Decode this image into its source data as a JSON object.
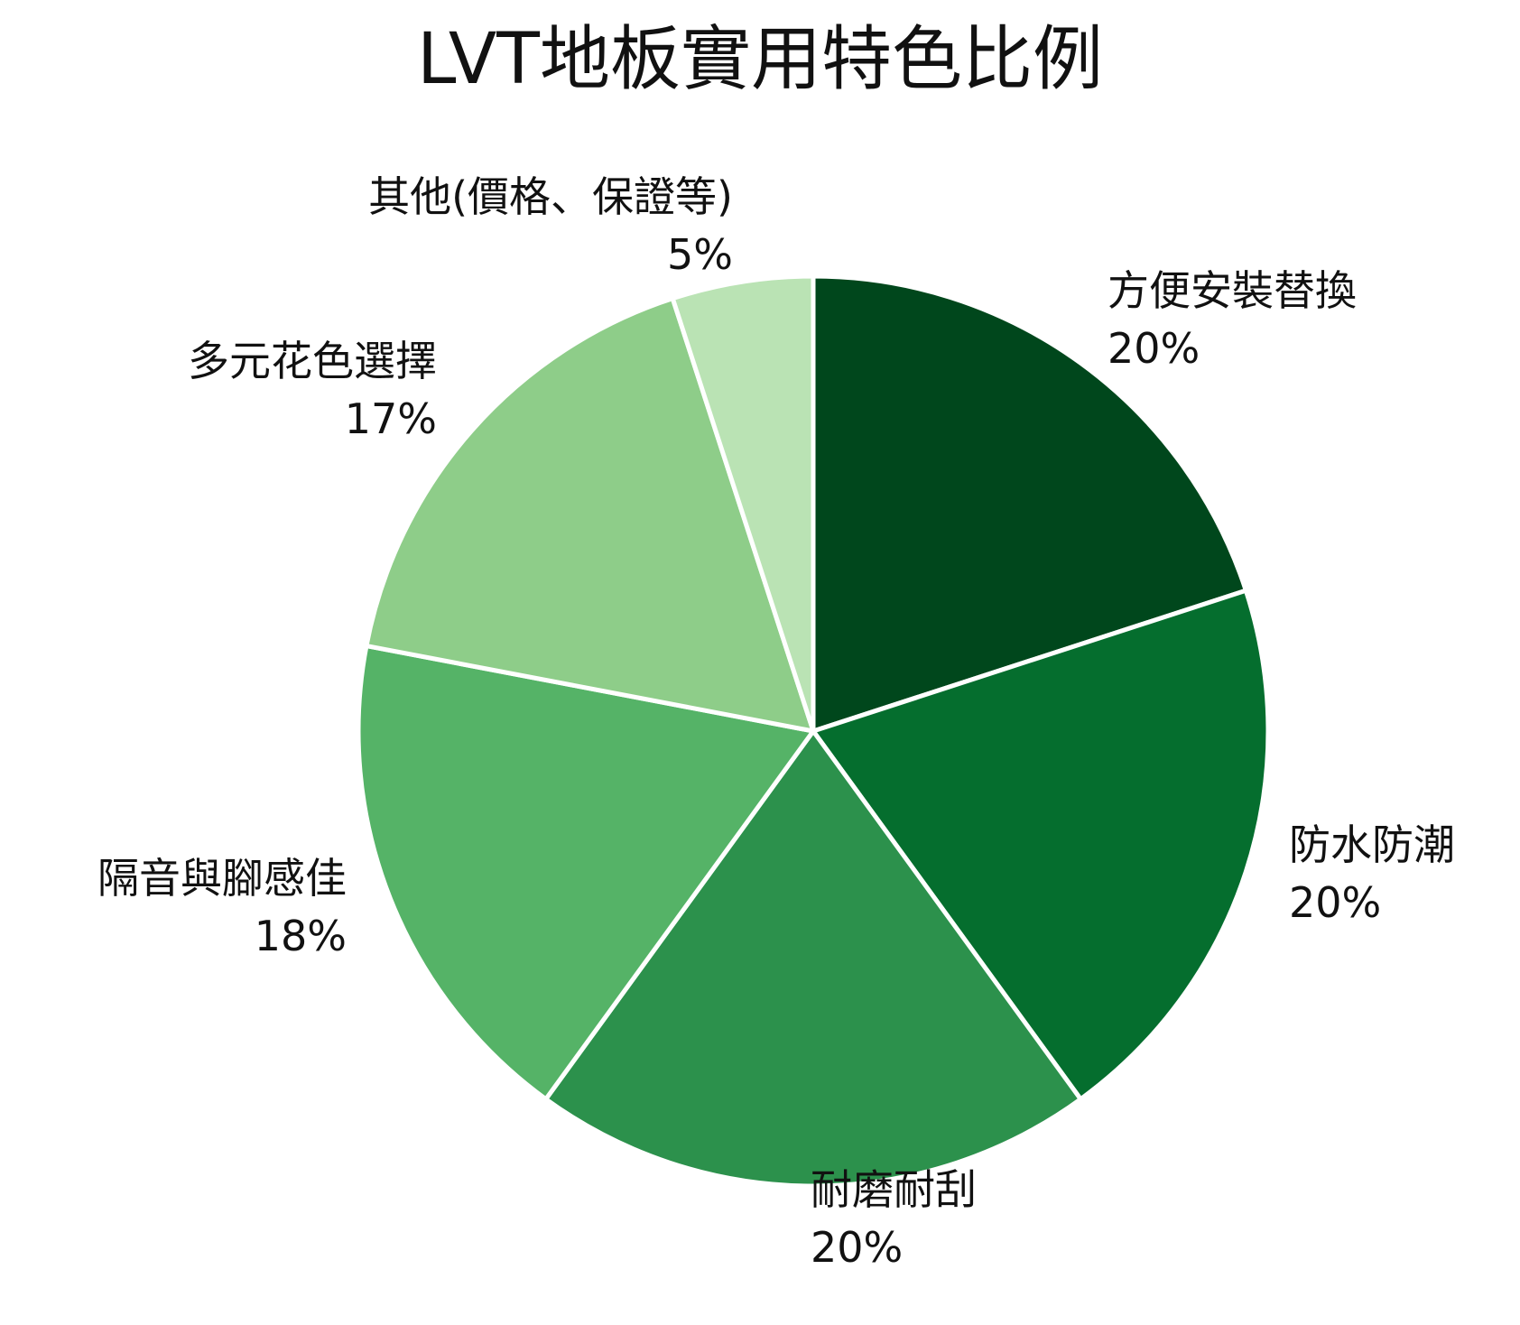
{
  "chart_data": {
    "type": "pie",
    "title": "LVT地板實用特色比例",
    "start_angle": "12 o'clock",
    "direction": "clockwise",
    "slices": [
      {
        "label": "方便安裝替換",
        "value": 20,
        "value_label": "20%",
        "color": "#00471c"
      },
      {
        "label": "防水防潮",
        "value": 20,
        "value_label": "20%",
        "color": "#056e2e"
      },
      {
        "label": "耐磨耐刮",
        "value": 20,
        "value_label": "20%",
        "color": "#2c914c"
      },
      {
        "label": "隔音與腳感佳",
        "value": 18,
        "value_label": "18%",
        "color": "#55b367"
      },
      {
        "label": "多元花色選擇",
        "value": 17,
        "value_label": "17%",
        "color": "#8ecd89"
      },
      {
        "label": "其他(價格、保證等)",
        "value": 5,
        "value_label": "5%",
        "color": "#bae3b4"
      }
    ],
    "slice_border_color": "#ffffff"
  }
}
